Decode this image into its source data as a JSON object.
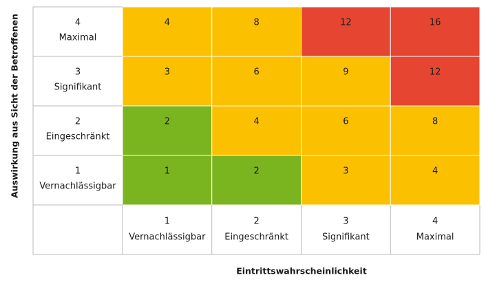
{
  "y_axis_title": "Auswirkung aus Sicht der Betroffenen",
  "x_axis_title": "Eintrittswahrscheinlichkeit",
  "rows": [
    {
      "number": "4",
      "label": "Maximal",
      "cells": [
        {
          "value": "4",
          "color": "#fbc000"
        },
        {
          "value": "8",
          "color": "#fbc000"
        },
        {
          "value": "12",
          "color": "#e64532"
        },
        {
          "value": "16",
          "color": "#e64532"
        }
      ]
    },
    {
      "number": "3",
      "label": "Signifikant",
      "cells": [
        {
          "value": "3",
          "color": "#fbc000"
        },
        {
          "value": "6",
          "color": "#fbc000"
        },
        {
          "value": "9",
          "color": "#fbc000"
        },
        {
          "value": "12",
          "color": "#e64532"
        }
      ]
    },
    {
      "number": "2",
      "label": "Eingeschränkt",
      "cells": [
        {
          "value": "2",
          "color": "#7ab41f"
        },
        {
          "value": "4",
          "color": "#fbc000"
        },
        {
          "value": "6",
          "color": "#fbc000"
        },
        {
          "value": "8",
          "color": "#fbc000"
        }
      ]
    },
    {
      "number": "1",
      "label": "Vernachlässigbar",
      "cells": [
        {
          "value": "1",
          "color": "#7ab41f"
        },
        {
          "value": "2",
          "color": "#7ab41f"
        },
        {
          "value": "3",
          "color": "#fbc000"
        },
        {
          "value": "4",
          "color": "#fbc000"
        }
      ]
    }
  ],
  "columns": [
    {
      "number": "1",
      "label": "Vernachlässigbar"
    },
    {
      "number": "2",
      "label": "Eingeschränkt"
    },
    {
      "number": "3",
      "label": "Signifikant"
    },
    {
      "number": "4",
      "label": "Maximal"
    }
  ]
}
